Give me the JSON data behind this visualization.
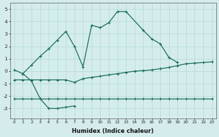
{
  "xlabel": "Humidex (Indice chaleur)",
  "curve1_x": [
    0,
    1,
    2,
    3,
    4,
    5,
    6,
    7,
    8,
    9,
    10,
    11,
    12,
    13,
    15,
    16,
    17,
    18,
    19
  ],
  "curve1_y": [
    0.1,
    -0.2,
    0.5,
    1.2,
    1.8,
    2.5,
    3.2,
    2.0,
    0.35,
    3.7,
    3.5,
    3.9,
    4.8,
    4.8,
    3.3,
    2.6,
    2.2,
    1.1,
    0.7
  ],
  "curve2_x": [
    1,
    2,
    3,
    4,
    5,
    6,
    7
  ],
  "curve2_y": [
    -0.2,
    -0.8,
    -2.2,
    -3.0,
    -3.0,
    -2.9,
    -2.8
  ],
  "curve3_x": [
    0,
    1,
    2,
    3,
    4,
    5,
    6,
    7,
    8,
    9,
    10,
    11,
    12,
    13,
    14,
    15,
    16,
    17,
    18,
    19,
    20,
    21,
    22,
    23
  ],
  "curve3_y": [
    -0.7,
    -0.7,
    -0.7,
    -0.7,
    -0.7,
    -0.7,
    -0.7,
    -0.9,
    -0.6,
    -0.5,
    -0.4,
    -0.3,
    -0.2,
    -0.1,
    -0.0,
    0.05,
    0.1,
    0.2,
    0.3,
    0.45,
    0.6,
    0.65,
    0.7,
    0.75
  ],
  "curve4_x": [
    0,
    1,
    2,
    3,
    4,
    5,
    6,
    7,
    8,
    9,
    10,
    11,
    12,
    13,
    14,
    15,
    16,
    17,
    18,
    19,
    20,
    21,
    22,
    23
  ],
  "curve4_y": [
    -2.2,
    -2.2,
    -2.2,
    -2.2,
    -2.2,
    -2.2,
    -2.2,
    -2.2,
    -2.2,
    -2.2,
    -2.2,
    -2.2,
    -2.2,
    -2.2,
    -2.2,
    -2.2,
    -2.2,
    -2.2,
    -2.2,
    -2.2,
    -2.2,
    -2.2,
    -2.2,
    -2.2
  ],
  "color": "#1a6b5a",
  "bg_color": "#d4edec",
  "grid_color": "#afd8d5",
  "ylim": [
    -3.8,
    5.5
  ],
  "xlim": [
    -0.5,
    23.5
  ],
  "yticks": [
    -3,
    -2,
    -1,
    0,
    1,
    2,
    3,
    4,
    5
  ],
  "xticks": [
    0,
    1,
    2,
    3,
    4,
    5,
    6,
    7,
    8,
    9,
    10,
    11,
    12,
    13,
    14,
    15,
    16,
    17,
    18,
    19,
    20,
    21,
    22,
    23
  ]
}
